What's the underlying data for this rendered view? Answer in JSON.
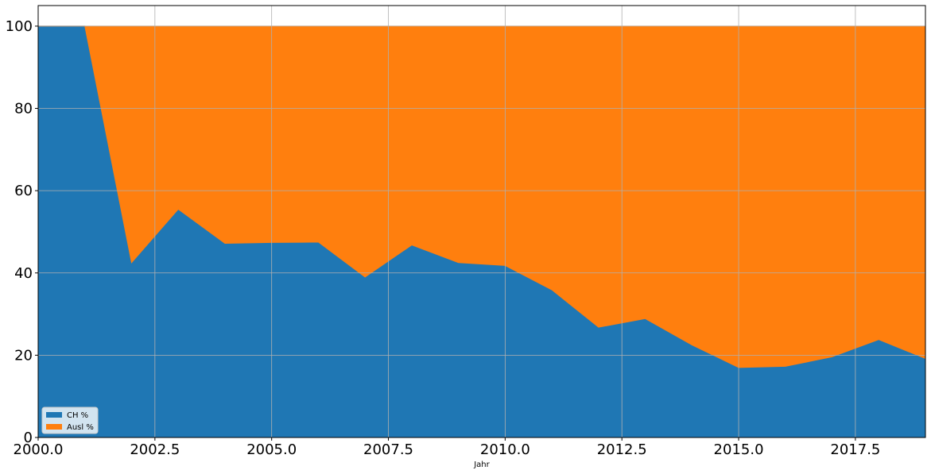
{
  "chart_data": {
    "type": "area",
    "stacked": true,
    "title": "",
    "xlabel": "Jahr",
    "ylabel": "",
    "xlim": [
      2000,
      2019
    ],
    "ylim": [
      0,
      105
    ],
    "x": [
      2000,
      2001,
      2002,
      2003,
      2004,
      2005,
      2006,
      2007,
      2008,
      2009,
      2010,
      2011,
      2012,
      2013,
      2014,
      2015,
      2016,
      2017,
      2018,
      2019
    ],
    "x_ticks": [
      2000.0,
      2002.5,
      2005.0,
      2007.5,
      2010.0,
      2012.5,
      2015.0,
      2017.5
    ],
    "x_tick_labels": [
      "2000.0",
      "2002.5",
      "2005.0",
      "2007.5",
      "2010.0",
      "2012.5",
      "2015.0",
      "2017.5"
    ],
    "y_ticks": [
      0,
      20,
      40,
      60,
      80,
      100
    ],
    "y_tick_labels": [
      "0",
      "20",
      "40",
      "60",
      "80",
      "100"
    ],
    "grid": true,
    "legend_position": "lower-left",
    "series": [
      {
        "name": "CH %",
        "color": "#1f77b4",
        "values": [
          100,
          100,
          42.5,
          55.5,
          47.2,
          47.4,
          47.5,
          39.0,
          46.8,
          42.5,
          41.8,
          35.9,
          26.8,
          28.9,
          22.5,
          17.0,
          17.3,
          19.6,
          23.8,
          19.2
        ]
      },
      {
        "name": "Ausl %",
        "color": "#ff7f0e",
        "values": [
          0,
          0,
          57.5,
          44.5,
          52.8,
          52.6,
          52.5,
          61.0,
          53.2,
          57.5,
          58.2,
          64.1,
          73.2,
          71.1,
          77.5,
          83.0,
          82.7,
          80.4,
          76.2,
          80.8
        ]
      }
    ]
  }
}
